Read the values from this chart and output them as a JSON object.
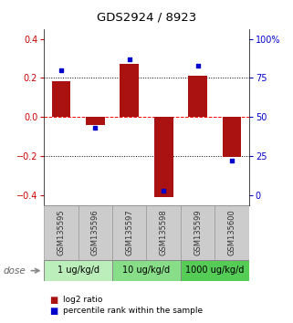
{
  "title": "GDS2924 / 8923",
  "samples": [
    "GSM135595",
    "GSM135596",
    "GSM135597",
    "GSM135598",
    "GSM135599",
    "GSM135600"
  ],
  "log2_ratios": [
    0.185,
    -0.04,
    0.27,
    -0.41,
    0.21,
    -0.205
  ],
  "percentile_ranks": [
    80,
    43,
    87,
    3,
    83,
    22
  ],
  "doses": [
    {
      "label": "1 ug/kg/d",
      "samples": [
        0,
        1
      ],
      "color": "#bbeebb"
    },
    {
      "label": "10 ug/kg/d",
      "samples": [
        2,
        3
      ],
      "color": "#88dd88"
    },
    {
      "label": "1000 ug/kg/d",
      "samples": [
        4,
        5
      ],
      "color": "#55cc55"
    }
  ],
  "bar_color": "#aa1111",
  "dot_color": "#0000cc",
  "left_axis_color": "#cc0000",
  "right_axis_color": "#0000cc",
  "ylim": [
    -0.45,
    0.45
  ],
  "yticks_left": [
    -0.4,
    -0.2,
    0.0,
    0.2,
    0.4
  ],
  "yticks_right": [
    0,
    25,
    50,
    75,
    100
  ],
  "hlines": [
    -0.2,
    0.0,
    0.2
  ],
  "hline_styles": [
    "dotted",
    "dashed",
    "dotted"
  ],
  "hline_colors": [
    "black",
    "red",
    "black"
  ],
  "bar_width": 0.55,
  "sample_label_color": "#333333",
  "legend_red_label": "log2 ratio",
  "legend_blue_label": "percentile rank within the sample",
  "background_color": "#ffffff",
  "plot_bg_color": "#ffffff",
  "sample_bg_color": "#cccccc"
}
